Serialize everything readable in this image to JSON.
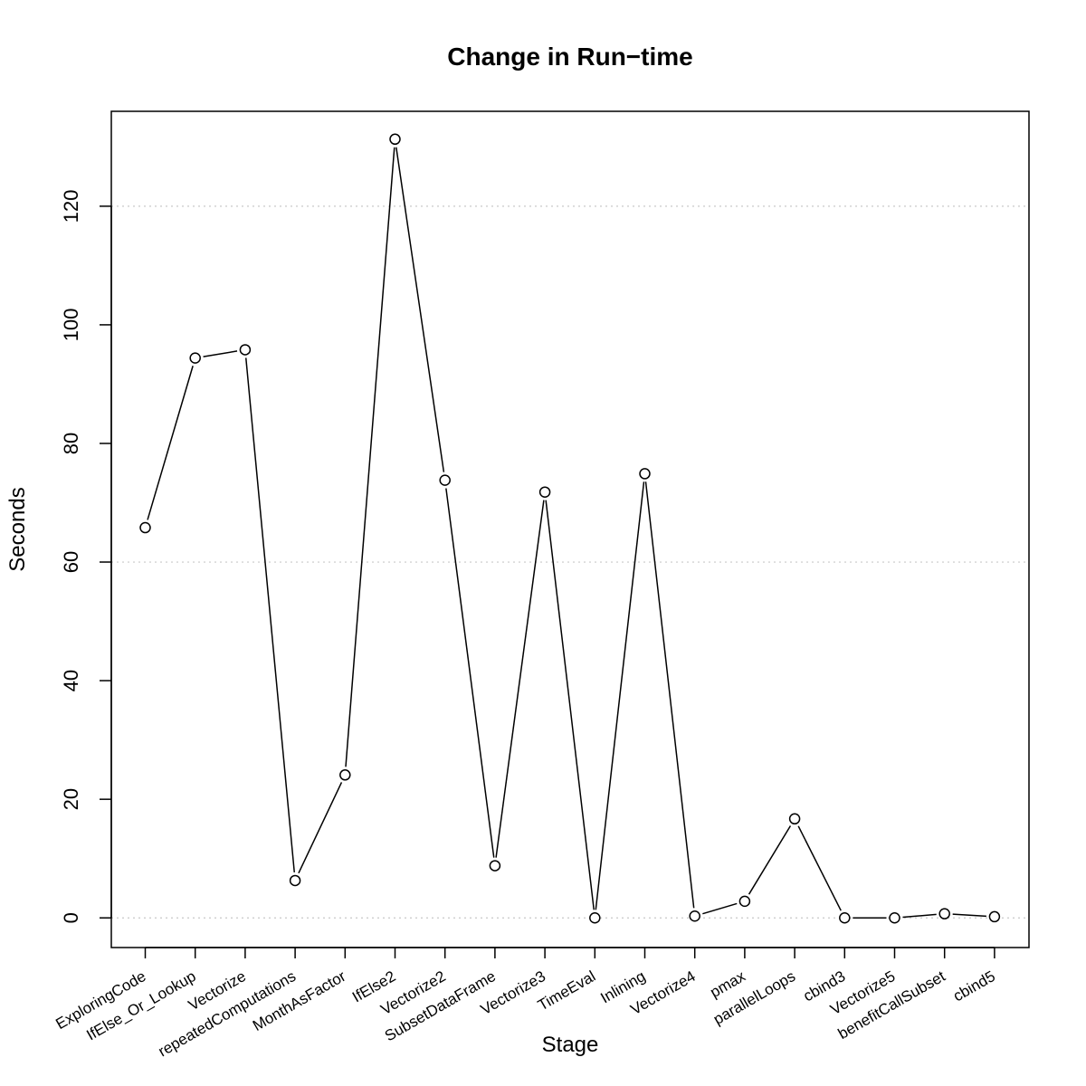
{
  "chart_data": {
    "type": "line",
    "title": "Change in Run−time",
    "xlabel": "Stage",
    "ylabel": "Seconds",
    "ylim": [
      -5,
      136
    ],
    "yticks": [
      0,
      20,
      40,
      60,
      80,
      100,
      120
    ],
    "grid": "horizontal dotted at 0, 60, 120",
    "grid_lines": [
      0,
      60,
      120
    ],
    "marker": "open-circle",
    "categories": [
      "ExploringCode",
      "IfElse_Or_Lookup",
      "Vectorize",
      "repeatedComputations",
      "MonthAsFactor",
      "IfElse2",
      "Vectorize2",
      "SubsetDataFrame",
      "Vectorize3",
      "TimeEval",
      "Inlining",
      "Vectorize4",
      "pmax",
      "parallelLoops",
      "cbind3",
      "Vectorize5",
      "benefitCallSubset",
      "cbind5"
    ],
    "values": [
      65.8,
      94.4,
      95.8,
      6.3,
      24.1,
      131.3,
      73.8,
      8.8,
      71.8,
      0.0,
      74.9,
      0.3,
      2.8,
      16.7,
      0.0,
      0.0,
      0.7,
      0.2
    ]
  }
}
